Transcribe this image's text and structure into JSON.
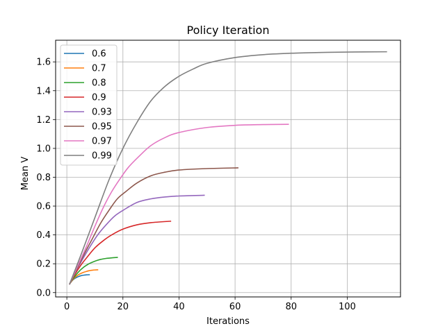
{
  "chart_data": {
    "type": "line",
    "title": "Policy Iteration",
    "xlabel": "Iterations",
    "ylabel": "Mean V",
    "xlim": [
      -4,
      119
    ],
    "ylim": [
      -0.03,
      1.75
    ],
    "xticks": [
      0,
      20,
      40,
      60,
      80,
      100
    ],
    "yticks": [
      0.0,
      0.2,
      0.4,
      0.6,
      0.8,
      1.0,
      1.2,
      1.4,
      1.6
    ],
    "grid": true,
    "legend_position": "top-left",
    "series": [
      {
        "name": "0.6",
        "color": "#1f77b4",
        "x": [
          1,
          2,
          3,
          4,
          5,
          6,
          7,
          8
        ],
        "y": [
          0.06,
          0.085,
          0.1,
          0.11,
          0.117,
          0.121,
          0.123,
          0.124
        ]
      },
      {
        "name": "0.7",
        "color": "#ff7f0e",
        "x": [
          1,
          2,
          3,
          4,
          5,
          6,
          7,
          8,
          9,
          10,
          11
        ],
        "y": [
          0.06,
          0.087,
          0.107,
          0.122,
          0.133,
          0.141,
          0.147,
          0.152,
          0.155,
          0.157,
          0.158
        ]
      },
      {
        "name": "0.8",
        "color": "#2ca02c",
        "x": [
          1,
          2,
          4,
          6,
          8,
          10,
          12,
          14,
          16,
          18
        ],
        "y": [
          0.06,
          0.09,
          0.14,
          0.176,
          0.201,
          0.218,
          0.23,
          0.237,
          0.241,
          0.244
        ]
      },
      {
        "name": "0.9",
        "color": "#d62728",
        "x": [
          1,
          3,
          5,
          7,
          10,
          13,
          16,
          20,
          25,
          30,
          37
        ],
        "y": [
          0.06,
          0.13,
          0.19,
          0.24,
          0.31,
          0.36,
          0.4,
          0.44,
          0.47,
          0.485,
          0.495
        ]
      },
      {
        "name": "0.93",
        "color": "#9467bd",
        "x": [
          1,
          3,
          5,
          8,
          11,
          14,
          17,
          20,
          25,
          30,
          35,
          40,
          49
        ],
        "y": [
          0.06,
          0.14,
          0.21,
          0.31,
          0.4,
          0.47,
          0.53,
          0.57,
          0.625,
          0.65,
          0.663,
          0.67,
          0.675
        ]
      },
      {
        "name": "0.95",
        "color": "#8c564b",
        "x": [
          1,
          3,
          6,
          9,
          12,
          15,
          18,
          21,
          25,
          30,
          35,
          40,
          50,
          61
        ],
        "y": [
          0.06,
          0.14,
          0.26,
          0.37,
          0.48,
          0.57,
          0.65,
          0.7,
          0.76,
          0.81,
          0.835,
          0.85,
          0.86,
          0.865
        ]
      },
      {
        "name": "0.97",
        "color": "#e377c2",
        "x": [
          1,
          4,
          7,
          10,
          13,
          16,
          19,
          22,
          26,
          30,
          35,
          40,
          50,
          60,
          70,
          79
        ],
        "y": [
          0.06,
          0.19,
          0.32,
          0.46,
          0.59,
          0.7,
          0.79,
          0.87,
          0.95,
          1.02,
          1.075,
          1.11,
          1.145,
          1.16,
          1.165,
          1.167
        ]
      },
      {
        "name": "0.99",
        "color": "#7f7f7f",
        "x": [
          1,
          5,
          10,
          15,
          20,
          25,
          30,
          35,
          40,
          45,
          50,
          60,
          70,
          80,
          90,
          100,
          114
        ],
        "y": [
          0.06,
          0.26,
          0.52,
          0.78,
          1.0,
          1.18,
          1.33,
          1.43,
          1.5,
          1.55,
          1.59,
          1.63,
          1.65,
          1.66,
          1.665,
          1.668,
          1.67
        ]
      }
    ]
  }
}
